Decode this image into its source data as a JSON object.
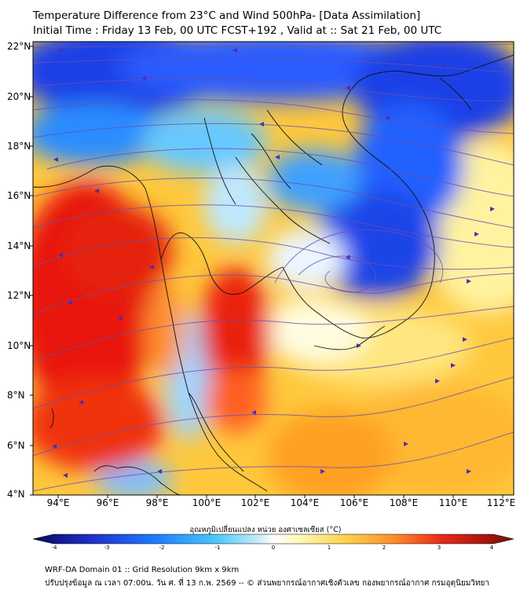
{
  "title": {
    "line1": "Temperature Difference from 23°C and Wind 500hPa- [Data Assimilation]",
    "line2": "Initial Time : Friday 13 Feb, 00 UTC FCST+192 , Valid at ::  Sat 21 Feb, 00 UTC"
  },
  "map": {
    "lon_labels": [
      "94°E",
      "96°E",
      "98°E",
      "100°E",
      "102°E",
      "104°E",
      "106°E",
      "108°E",
      "110°E",
      "112°E"
    ],
    "lat_labels": [
      "22°N",
      "20°N",
      "18°N",
      "16°N",
      "14°N",
      "12°N",
      "10°N",
      "8°N",
      "6°N",
      "4°N"
    ],
    "lon_range": [
      93,
      112.5
    ],
    "lat_range": [
      4,
      22.2
    ],
    "fill_colors": {
      "deep_red": "#d7191c",
      "red": "#ef3b2c",
      "orange": "#fd8d3c",
      "yellow": "#fee08b",
      "pale": "#ffffe0",
      "light_blue": "#9ecae1",
      "blue": "#2c7fff",
      "deep_blue": "#1f3fd6"
    },
    "streamline_color": "#6a4fb0"
  },
  "colorbar": {
    "label": "อุณหภูมิเปลี่ยนแปลง หน่วย องศาเซลเซียส (°C)",
    "ticks": [
      "-4",
      "-3",
      "-2",
      "-1",
      "0",
      "1",
      "2",
      "3",
      "4"
    ],
    "range": [
      -4,
      4
    ]
  },
  "footer": {
    "line1": "WRF-DA Domain 01 :: Grid Resolution 9km x 9km",
    "line2": "ปรับปรุงข้อมูล ณ เวลา 07:00น. วัน ศ. ที่ 13 ก.พ. 2569 -- © ส่วนพยากรณ์อากาศเชิงตัวเลข กองพยากรณ์อากาศ กรมอุตุนิยมวิทยา"
  }
}
